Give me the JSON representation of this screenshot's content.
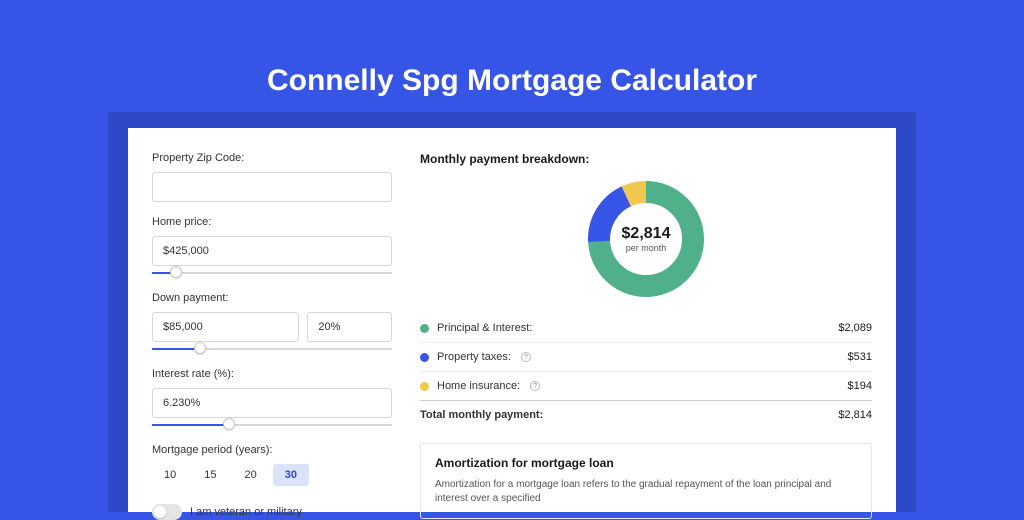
{
  "page": {
    "title": "Connelly Spg Mortgage Calculator",
    "background_color": "#3654e6",
    "card_shadow_color": "#2d49c7",
    "card_color": "#ffffff"
  },
  "form": {
    "zip": {
      "label": "Property Zip Code:",
      "value": ""
    },
    "home_price": {
      "label": "Home price:",
      "value": "$425,000",
      "slider_pct": 10
    },
    "down_payment": {
      "label": "Down payment:",
      "value": "$85,000",
      "pct_value": "20%",
      "slider_pct": 20
    },
    "interest_rate": {
      "label": "Interest rate (%):",
      "value": "6.230%",
      "slider_pct": 32
    },
    "mortgage_period": {
      "label": "Mortgage period (years):",
      "options": [
        "10",
        "15",
        "20",
        "30"
      ],
      "selected": "30"
    },
    "veteran": {
      "label": "I am veteran or military",
      "on": false
    }
  },
  "breakdown": {
    "title": "Monthly payment breakdown:",
    "amount": "$2,814",
    "amount_sub": "per month",
    "donut": {
      "size": 130,
      "thickness": 22,
      "segments": [
        {
          "key": "principal_interest",
          "value": 2089,
          "color": "#4fb08a",
          "pct": 74.2
        },
        {
          "key": "property_taxes",
          "value": 531,
          "color": "#3654e6",
          "pct": 18.9
        },
        {
          "key": "home_insurance",
          "value": 194,
          "color": "#f0c850",
          "pct": 6.9
        }
      ]
    },
    "items": [
      {
        "label": "Principal & Interest:",
        "value": "$2,089",
        "color": "#4fb08a",
        "info": false
      },
      {
        "label": "Property taxes:",
        "value": "$531",
        "color": "#3654e6",
        "info": true
      },
      {
        "label": "Home insurance:",
        "value": "$194",
        "color": "#f0c850",
        "info": true
      }
    ],
    "total": {
      "label": "Total monthly payment:",
      "value": "$2,814"
    }
  },
  "amortization": {
    "title": "Amortization for mortgage loan",
    "text": "Amortization for a mortgage loan refers to the gradual repayment of the loan principal and interest over a specified"
  }
}
